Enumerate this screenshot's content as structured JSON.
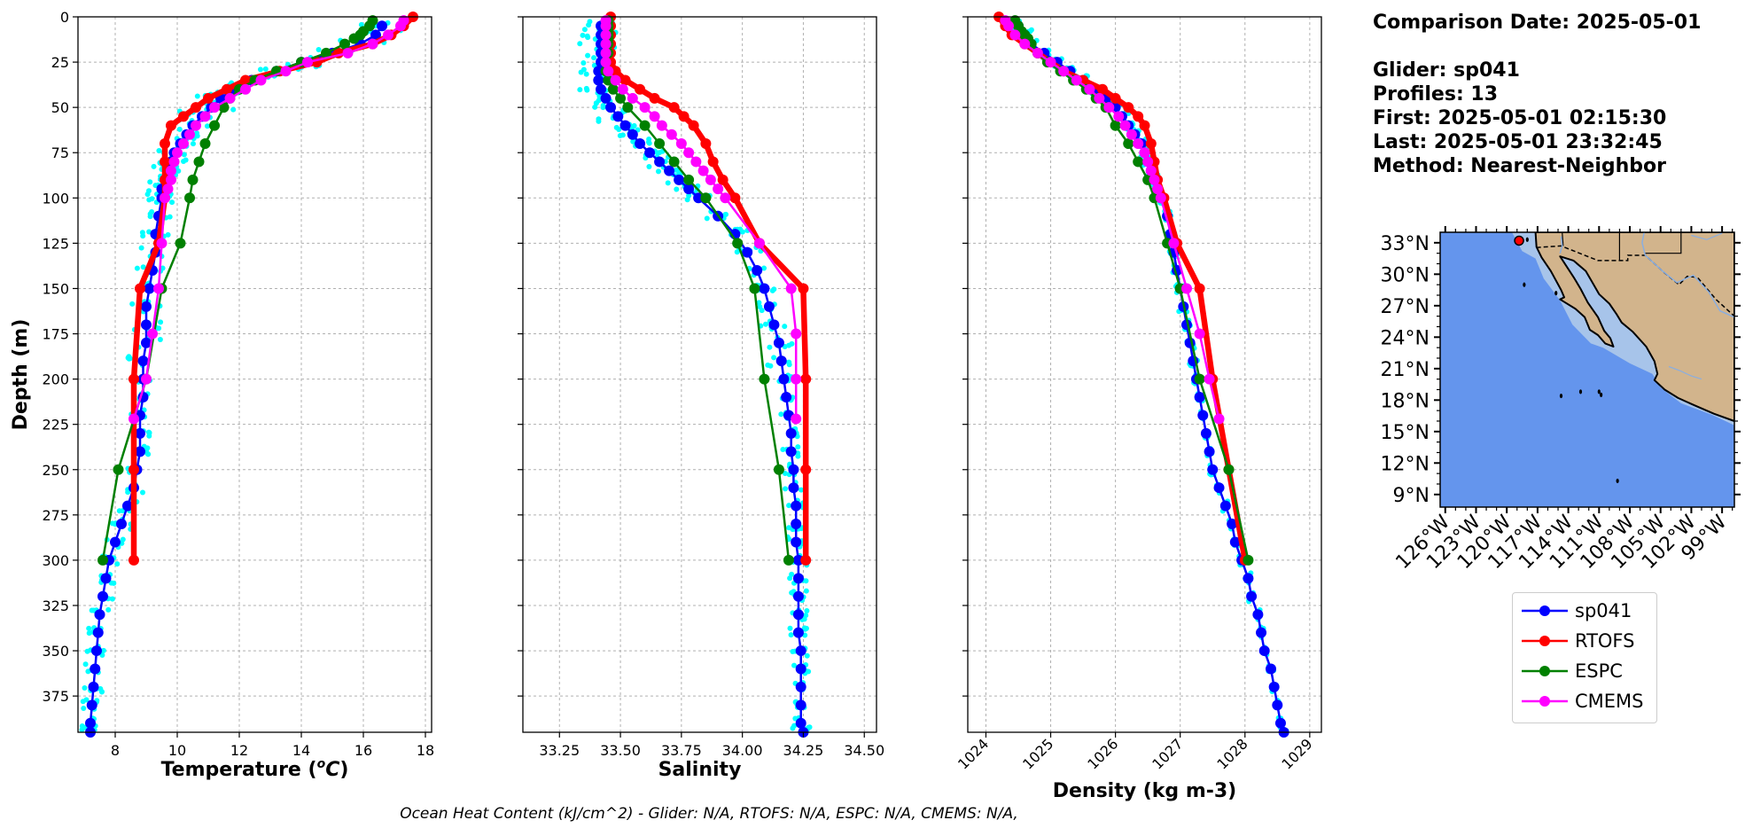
{
  "info": {
    "comparison": "Comparison Date: 2025-05-01",
    "glider": "Glider: sp041",
    "profiles": "Profiles: 13",
    "first": "First: 2025-05-01 02:15:30",
    "last": "Last: 2025-05-01 23:32:45",
    "method": "Method: Nearest-Neighbor"
  },
  "footer": "Ocean Heat Content (kJ/cm^2) - Glider: N/A,  RTOFS: N/A,  ESPC: N/A,  CMEMS: N/A,",
  "colors": {
    "glider": "#0000ff",
    "glider_profiles": "#00ffff",
    "rtofs": "#ff0000",
    "espc": "#008000",
    "cmems": "#ff00ff",
    "ocean": "#6495ed",
    "land": "#d2b48c",
    "shelf": "#a7c4ea"
  },
  "legend": [
    {
      "label": "sp041",
      "color": "#0000ff"
    },
    {
      "label": "RTOFS",
      "color": "#ff0000"
    },
    {
      "label": "ESPC",
      "color": "#008000"
    },
    {
      "label": "CMEMS",
      "color": "#ff00ff"
    }
  ],
  "chart_data": [
    {
      "type": "line",
      "xlabel": "Temperature ($^oC$)",
      "ylabel": "Depth (m)",
      "xlim": [
        6.8,
        18.2
      ],
      "ylim": [
        395,
        0
      ],
      "xticks": [
        8,
        10,
        12,
        14,
        16,
        18
      ],
      "yticks": [
        0,
        25,
        50,
        75,
        100,
        125,
        150,
        175,
        200,
        225,
        250,
        275,
        300,
        325,
        350,
        375
      ],
      "grid": true,
      "series": [
        {
          "name": "sp041",
          "depth": [
            5,
            10,
            15,
            20,
            25,
            30,
            35,
            40,
            45,
            50,
            55,
            60,
            65,
            70,
            75,
            80,
            85,
            90,
            95,
            100,
            110,
            120,
            130,
            140,
            150,
            160,
            170,
            180,
            190,
            200,
            210,
            220,
            230,
            240,
            250,
            260,
            270,
            280,
            290,
            300,
            310,
            320,
            330,
            340,
            350,
            360,
            370,
            380,
            390,
            395
          ],
          "values": [
            16.6,
            16.4,
            15.9,
            15.0,
            14.0,
            13.2,
            12.4,
            11.8,
            11.4,
            11.1,
            10.8,
            10.5,
            10.3,
            10.1,
            9.9,
            9.8,
            9.7,
            9.6,
            9.5,
            9.5,
            9.4,
            9.3,
            9.3,
            9.2,
            9.1,
            9.0,
            9.0,
            9.0,
            8.9,
            8.9,
            8.9,
            8.8,
            8.8,
            8.8,
            8.7,
            8.6,
            8.4,
            8.2,
            8.0,
            7.8,
            7.7,
            7.6,
            7.5,
            7.45,
            7.4,
            7.35,
            7.3,
            7.25,
            7.2,
            7.2
          ]
        },
        {
          "name": "RTOFS",
          "depth": [
            0,
            5,
            10,
            15,
            20,
            25,
            30,
            35,
            40,
            45,
            50,
            55,
            60,
            70,
            80,
            90,
            100,
            125,
            150,
            200,
            250,
            300
          ],
          "values": [
            17.6,
            17.3,
            16.9,
            16.3,
            15.2,
            14.5,
            13.3,
            12.2,
            11.6,
            11.0,
            10.6,
            10.2,
            9.8,
            9.6,
            9.6,
            9.6,
            9.6,
            9.4,
            8.8,
            8.6,
            8.6,
            8.6
          ]
        },
        {
          "name": "ESPC",
          "depth": [
            2,
            5,
            8,
            10,
            12,
            15,
            20,
            25,
            30,
            35,
            40,
            45,
            50,
            60,
            70,
            80,
            90,
            100,
            125,
            150,
            200,
            250,
            300
          ],
          "values": [
            16.3,
            16.2,
            16.0,
            15.9,
            15.7,
            15.4,
            14.8,
            14.0,
            13.2,
            12.5,
            12.0,
            11.7,
            11.5,
            11.2,
            10.9,
            10.7,
            10.5,
            10.4,
            10.1,
            9.5,
            9.0,
            8.1,
            7.6
          ]
        },
        {
          "name": "CMEMS",
          "depth": [
            2,
            5,
            10,
            15,
            20,
            25,
            30,
            35,
            40,
            45,
            50,
            55,
            60,
            65,
            70,
            75,
            80,
            85,
            90,
            95,
            100,
            125,
            150,
            175,
            200,
            222
          ],
          "values": [
            17.3,
            17.2,
            16.8,
            16.3,
            15.5,
            14.2,
            13.5,
            12.7,
            12.2,
            11.7,
            11.2,
            10.9,
            10.6,
            10.4,
            10.2,
            10.0,
            9.9,
            9.8,
            9.8,
            9.7,
            9.6,
            9.5,
            9.4,
            9.2,
            9.0,
            8.6
          ]
        }
      ]
    },
    {
      "type": "line",
      "xlabel": "Salinity",
      "xlim": [
        33.1,
        34.55
      ],
      "ylim": [
        395,
        0
      ],
      "xticks": [
        33.25,
        33.5,
        33.75,
        34.0,
        34.25,
        34.5
      ],
      "xtick_labels": [
        "33.25",
        "33.50",
        "33.75",
        "34.00",
        "34.25",
        "34.50"
      ],
      "grid": true,
      "series": [
        {
          "name": "sp041",
          "depth": [
            5,
            10,
            15,
            20,
            25,
            30,
            35,
            40,
            45,
            50,
            55,
            60,
            65,
            70,
            75,
            80,
            85,
            90,
            95,
            100,
            110,
            120,
            130,
            140,
            150,
            160,
            170,
            180,
            190,
            200,
            210,
            220,
            230,
            240,
            250,
            260,
            270,
            280,
            290,
            300,
            310,
            320,
            330,
            340,
            350,
            360,
            370,
            380,
            390,
            395
          ],
          "values": [
            33.42,
            33.42,
            33.42,
            33.42,
            33.42,
            33.41,
            33.41,
            33.42,
            33.44,
            33.46,
            33.49,
            33.52,
            33.55,
            33.58,
            33.62,
            33.66,
            33.7,
            33.74,
            33.78,
            33.82,
            33.9,
            33.97,
            34.02,
            34.06,
            34.09,
            34.11,
            34.13,
            34.15,
            34.16,
            34.17,
            34.18,
            34.19,
            34.2,
            34.2,
            34.21,
            34.21,
            34.22,
            34.22,
            34.22,
            34.23,
            34.23,
            34.23,
            34.23,
            34.23,
            34.24,
            34.24,
            34.24,
            34.24,
            34.24,
            34.25
          ]
        },
        {
          "name": "RTOFS",
          "depth": [
            0,
            5,
            10,
            15,
            20,
            25,
            30,
            35,
            40,
            45,
            50,
            55,
            60,
            70,
            80,
            90,
            100,
            125,
            150,
            200,
            250,
            300
          ],
          "values": [
            33.46,
            33.46,
            33.46,
            33.46,
            33.46,
            33.46,
            33.48,
            33.52,
            33.58,
            33.64,
            33.72,
            33.76,
            33.8,
            33.85,
            33.88,
            33.92,
            33.97,
            34.07,
            34.25,
            34.26,
            34.26,
            34.26
          ]
        },
        {
          "name": "ESPC",
          "depth": [
            2,
            5,
            8,
            10,
            12,
            15,
            20,
            25,
            30,
            35,
            40,
            45,
            50,
            60,
            70,
            80,
            90,
            100,
            125,
            150,
            200,
            250,
            300
          ],
          "values": [
            33.45,
            33.45,
            33.45,
            33.45,
            33.45,
            33.45,
            33.45,
            33.44,
            33.44,
            33.45,
            33.47,
            33.5,
            33.53,
            33.6,
            33.66,
            33.72,
            33.78,
            33.85,
            33.98,
            34.05,
            34.09,
            34.15,
            34.19
          ]
        },
        {
          "name": "CMEMS",
          "depth": [
            2,
            5,
            10,
            15,
            20,
            25,
            30,
            35,
            40,
            45,
            50,
            55,
            60,
            65,
            70,
            75,
            80,
            85,
            90,
            95,
            100,
            125,
            150,
            175,
            200,
            222
          ],
          "values": [
            33.44,
            33.44,
            33.44,
            33.44,
            33.44,
            33.44,
            33.45,
            33.48,
            33.51,
            33.55,
            33.6,
            33.64,
            33.67,
            33.71,
            33.75,
            33.78,
            33.81,
            33.84,
            33.87,
            33.9,
            33.93,
            34.07,
            34.2,
            34.22,
            34.22,
            34.22
          ]
        }
      ]
    },
    {
      "type": "line",
      "xlabel": "Density (kg m-3)",
      "xlim": [
        1023.72,
        1029.18
      ],
      "ylim": [
        395,
        0
      ],
      "xticks": [
        1024,
        1025,
        1026,
        1027,
        1028,
        1029
      ],
      "grid": true,
      "series": [
        {
          "name": "sp041",
          "depth": [
            5,
            10,
            15,
            20,
            25,
            30,
            35,
            40,
            45,
            50,
            55,
            60,
            65,
            70,
            75,
            80,
            85,
            90,
            95,
            100,
            110,
            120,
            130,
            140,
            150,
            160,
            170,
            180,
            190,
            200,
            210,
            220,
            230,
            240,
            250,
            260,
            270,
            280,
            290,
            300,
            310,
            320,
            330,
            340,
            350,
            360,
            370,
            380,
            390,
            395
          ],
          "values": [
            1024.5,
            1024.6,
            1024.7,
            1024.9,
            1025.1,
            1025.3,
            1025.5,
            1025.7,
            1025.85,
            1026.0,
            1026.1,
            1026.2,
            1026.3,
            1026.4,
            1026.45,
            1026.5,
            1026.55,
            1026.6,
            1026.65,
            1026.7,
            1026.8,
            1026.85,
            1026.9,
            1026.95,
            1027.0,
            1027.05,
            1027.1,
            1027.15,
            1027.2,
            1027.25,
            1027.3,
            1027.35,
            1027.4,
            1027.45,
            1027.5,
            1027.6,
            1027.7,
            1027.8,
            1027.85,
            1027.95,
            1028.05,
            1028.1,
            1028.2,
            1028.25,
            1028.3,
            1028.4,
            1028.45,
            1028.5,
            1028.55,
            1028.6
          ]
        },
        {
          "name": "RTOFS",
          "depth": [
            0,
            5,
            10,
            15,
            20,
            25,
            30,
            35,
            40,
            45,
            50,
            55,
            60,
            70,
            80,
            90,
            100,
            125,
            150,
            200,
            250,
            300
          ],
          "values": [
            1024.2,
            1024.3,
            1024.4,
            1024.6,
            1024.8,
            1025.0,
            1025.2,
            1025.5,
            1025.8,
            1026.0,
            1026.2,
            1026.35,
            1026.45,
            1026.55,
            1026.6,
            1026.65,
            1026.75,
            1026.95,
            1027.3,
            1027.5,
            1027.75,
            1028.0
          ]
        },
        {
          "name": "ESPC",
          "depth": [
            2,
            5,
            8,
            10,
            12,
            15,
            20,
            25,
            30,
            35,
            40,
            45,
            50,
            60,
            70,
            80,
            90,
            100,
            125,
            150,
            200,
            250,
            300
          ],
          "values": [
            1024.45,
            1024.5,
            1024.55,
            1024.6,
            1024.65,
            1024.7,
            1024.8,
            1024.95,
            1025.15,
            1025.35,
            1025.55,
            1025.7,
            1025.85,
            1026.0,
            1026.2,
            1026.35,
            1026.5,
            1026.6,
            1026.8,
            1027.0,
            1027.3,
            1027.75,
            1028.05
          ]
        },
        {
          "name": "CMEMS",
          "depth": [
            2,
            5,
            10,
            15,
            20,
            25,
            30,
            35,
            40,
            45,
            50,
            55,
            60,
            65,
            70,
            75,
            80,
            85,
            90,
            95,
            100,
            125,
            150,
            175,
            200,
            222
          ],
          "values": [
            1024.3,
            1024.35,
            1024.45,
            1024.6,
            1024.8,
            1025.0,
            1025.2,
            1025.4,
            1025.6,
            1025.75,
            1025.9,
            1026.05,
            1026.15,
            1026.25,
            1026.35,
            1026.45,
            1026.5,
            1026.55,
            1026.6,
            1026.65,
            1026.7,
            1026.9,
            1027.1,
            1027.3,
            1027.45,
            1027.6
          ]
        }
      ]
    },
    {
      "type": "map",
      "lon_labels": [
        "126°W",
        "123°W",
        "120°W",
        "117°W",
        "114°W",
        "111°W",
        "108°W",
        "105°W",
        "102°W",
        "99°W"
      ],
      "lat_labels": [
        "33°N",
        "30°N",
        "27°N",
        "24°N",
        "21°N",
        "18°N",
        "15°N",
        "12°N",
        "9°N"
      ],
      "extent": [
        -126.5,
        -97.8,
        7.8,
        34.0
      ],
      "glider_marker": {
        "lon": -118.8,
        "lat": 33.2
      }
    }
  ]
}
